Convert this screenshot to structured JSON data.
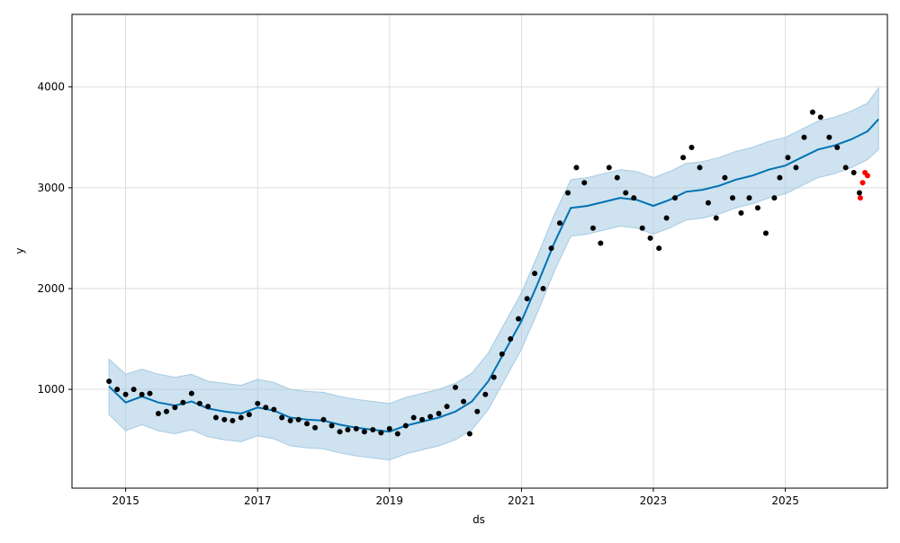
{
  "chart_data": {
    "type": "line",
    "title": "",
    "xlabel": "ds",
    "ylabel": "y",
    "x_range": [
      "2014-03-10",
      "2026-07-20"
    ],
    "ylim": [
      20,
      4720
    ],
    "x_tick_labels": [
      "2015",
      "2017",
      "2019",
      "2021",
      "2023",
      "2025"
    ],
    "y_ticks": [
      1000,
      2000,
      3000,
      4000
    ],
    "grid": true,
    "legend": "none",
    "colors": {
      "observed": "#000000",
      "holdout": "#ff0000",
      "forecast": "#0072b2",
      "interval": "#a6cbe3"
    },
    "series": [
      {
        "kind": "forecast_line",
        "x": [
          "2014-10-01",
          "2015-01-01",
          "2015-04-01",
          "2015-07-01",
          "2015-10-01",
          "2016-01-01",
          "2016-04-01",
          "2016-07-01",
          "2016-10-01",
          "2017-01-01",
          "2017-04-01",
          "2017-07-01",
          "2017-10-01",
          "2018-01-01",
          "2018-04-01",
          "2018-07-01",
          "2018-10-01",
          "2019-01-01",
          "2019-04-01",
          "2019-07-01",
          "2019-10-01",
          "2020-01-01",
          "2020-04-01",
          "2020-07-01",
          "2020-10-01",
          "2021-01-01",
          "2021-04-01",
          "2021-07-01",
          "2021-10-01",
          "2022-01-01",
          "2022-04-01",
          "2022-07-01",
          "2022-10-01",
          "2023-01-01",
          "2023-04-01",
          "2023-07-01",
          "2023-10-01",
          "2024-01-01",
          "2024-04-01",
          "2024-07-01",
          "2024-10-01",
          "2025-01-01",
          "2025-04-01",
          "2025-07-01",
          "2025-10-01",
          "2026-01-01",
          "2026-04-01",
          "2026-06-01"
        ],
        "y": [
          1030,
          870,
          930,
          870,
          840,
          880,
          810,
          780,
          760,
          820,
          790,
          720,
          700,
          690,
          650,
          620,
          600,
          580,
          640,
          680,
          720,
          780,
          880,
          1080,
          1380,
          1680,
          2050,
          2450,
          2800,
          2820,
          2860,
          2900,
          2880,
          2820,
          2880,
          2960,
          2980,
          3020,
          3080,
          3120,
          3180,
          3220,
          3300,
          3380,
          3420,
          3480,
          3560,
          3680
        ]
      },
      {
        "kind": "interval_upper",
        "y": [
          1300,
          1150,
          1200,
          1150,
          1120,
          1150,
          1080,
          1060,
          1040,
          1100,
          1070,
          1000,
          980,
          970,
          930,
          900,
          880,
          860,
          920,
          960,
          1000,
          1060,
          1160,
          1360,
          1660,
          1960,
          2330,
          2730,
          3080,
          3100,
          3140,
          3180,
          3160,
          3100,
          3160,
          3240,
          3260,
          3300,
          3360,
          3400,
          3460,
          3500,
          3580,
          3660,
          3700,
          3760,
          3840,
          3990
        ]
      },
      {
        "kind": "interval_lower",
        "y": [
          750,
          590,
          650,
          590,
          560,
          600,
          530,
          500,
          480,
          540,
          510,
          440,
          420,
          410,
          370,
          340,
          320,
          300,
          360,
          400,
          440,
          500,
          600,
          800,
          1100,
          1400,
          1770,
          2170,
          2520,
          2540,
          2580,
          2620,
          2600,
          2540,
          2600,
          2680,
          2700,
          2740,
          2800,
          2840,
          2900,
          2940,
          3020,
          3100,
          3140,
          3200,
          3280,
          3380
        ]
      },
      {
        "kind": "observed_points",
        "x": [
          "2014-10-01",
          "2014-11-15",
          "2015-01-01",
          "2015-02-15",
          "2015-04-01",
          "2015-05-15",
          "2015-07-01",
          "2015-08-15",
          "2015-10-01",
          "2015-11-15",
          "2016-01-01",
          "2016-02-15",
          "2016-04-01",
          "2016-05-15",
          "2016-07-01",
          "2016-08-15",
          "2016-10-01",
          "2016-11-15",
          "2017-01-01",
          "2017-02-15",
          "2017-04-01",
          "2017-05-15",
          "2017-07-01",
          "2017-08-15",
          "2017-10-01",
          "2017-11-15",
          "2018-01-01",
          "2018-02-15",
          "2018-04-01",
          "2018-05-15",
          "2018-07-01",
          "2018-08-15",
          "2018-10-01",
          "2018-11-15",
          "2019-01-01",
          "2019-02-15",
          "2019-04-01",
          "2019-05-15",
          "2019-07-01",
          "2019-08-15",
          "2019-10-01",
          "2019-11-15",
          "2020-01-01",
          "2020-02-15",
          "2020-03-20",
          "2020-05-01",
          "2020-06-15",
          "2020-08-01",
          "2020-09-15",
          "2020-11-01",
          "2020-12-15",
          "2021-02-01",
          "2021-03-15",
          "2021-05-01",
          "2021-06-15",
          "2021-08-01",
          "2021-09-15",
          "2021-11-01",
          "2021-12-15",
          "2022-02-01",
          "2022-03-15",
          "2022-05-01",
          "2022-06-15",
          "2022-08-01",
          "2022-09-15",
          "2022-11-01",
          "2022-12-15",
          "2023-02-01",
          "2023-03-15",
          "2023-05-01",
          "2023-06-15",
          "2023-08-01",
          "2023-09-15",
          "2023-11-01",
          "2023-12-15",
          "2024-02-01",
          "2024-03-15",
          "2024-05-01",
          "2024-06-15",
          "2024-08-01",
          "2024-09-15",
          "2024-11-01",
          "2024-12-01",
          "2025-01-15",
          "2025-03-01",
          "2025-04-15",
          "2025-06-01",
          "2025-07-15",
          "2025-09-01",
          "2025-10-15",
          "2025-12-01",
          "2026-01-15",
          "2026-02-15"
        ],
        "y": [
          1080,
          1000,
          950,
          1000,
          950,
          960,
          760,
          780,
          820,
          870,
          960,
          860,
          830,
          720,
          700,
          690,
          720,
          750,
          860,
          820,
          800,
          720,
          690,
          700,
          660,
          620,
          700,
          640,
          580,
          600,
          610,
          580,
          600,
          570,
          610,
          560,
          640,
          720,
          700,
          730,
          760,
          830,
          1020,
          880,
          560,
          780,
          950,
          1120,
          1350,
          1500,
          1700,
          1900,
          2150,
          2000,
          2400,
          2650,
          2950,
          3200,
          3050,
          2600,
          2450,
          3200,
          3100,
          2950,
          2900,
          2600,
          2500,
          2400,
          2700,
          2900,
          3300,
          3400,
          3200,
          2850,
          2700,
          3100,
          2900,
          2750,
          2900,
          2800,
          2550,
          2900,
          3100,
          3300,
          3200,
          3500,
          3750,
          3700,
          3500,
          3400,
          3200,
          3150,
          2950
        ]
      },
      {
        "kind": "holdout_points",
        "x": [
          "2026-02-20",
          "2026-03-05",
          "2026-03-18",
          "2026-04-01"
        ],
        "y": [
          2900,
          3050,
          3150,
          3120
        ]
      }
    ]
  }
}
